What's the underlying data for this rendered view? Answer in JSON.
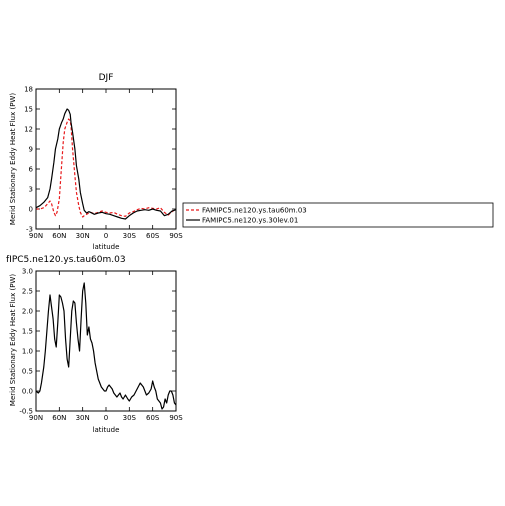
{
  "chart_data": [
    {
      "type": "line",
      "title": "DJF",
      "xlabel": "latitude",
      "ylabel": "Merid Stationary Eddy Heat Flux (PW)",
      "xlim": [
        90,
        -90
      ],
      "ylim": [
        -3,
        18
      ],
      "xticks": [
        90,
        60,
        30,
        0,
        -30,
        -60,
        -90
      ],
      "xtick_labels": [
        "90N",
        "60N",
        "30N",
        "0",
        "30S",
        "60S",
        "90S"
      ],
      "yticks": [
        -3,
        0,
        3,
        6,
        9,
        12,
        15,
        18
      ],
      "ytick_labels": [
        "-3",
        "0",
        "3",
        "6",
        "9",
        "12",
        "15",
        "18"
      ],
      "legend_position": "right",
      "series": [
        {
          "name": "FAMIPC5.ne120.ys.tau60m.03",
          "color": "#e8191b",
          "dash": "dashed",
          "x": [
            90,
            85,
            80,
            78,
            75,
            72,
            70,
            67,
            65,
            63,
            60,
            58,
            55,
            53,
            50,
            48,
            46,
            45,
            43,
            40,
            38,
            35,
            33,
            30,
            28,
            25,
            22,
            20,
            15,
            10,
            5,
            0,
            -5,
            -10,
            -15,
            -20,
            -25,
            -30,
            -35,
            -40,
            -45,
            -50,
            -55,
            -60,
            -65,
            -70,
            -75,
            -80,
            -85,
            -90
          ],
          "y": [
            0,
            0,
            0.2,
            0.4,
            0.8,
            1.2,
            0.8,
            -0.5,
            -1.0,
            -0.5,
            1.5,
            5.0,
            10.0,
            12.0,
            13.0,
            13.5,
            13.2,
            12.5,
            9.0,
            5.0,
            2.5,
            0.5,
            -0.5,
            -1.2,
            -1.0,
            -0.8,
            -0.6,
            -0.5,
            -0.7,
            -0.5,
            -0.3,
            -0.5,
            -0.6,
            -0.5,
            -0.8,
            -1.0,
            -1.1,
            -0.6,
            -0.4,
            -0.1,
            0.1,
            0.0,
            0.2,
            0.1,
            0.0,
            0.2,
            -0.5,
            -0.9,
            -0.4,
            0.0
          ]
        },
        {
          "name": "FAMIPC5.ne120.ys.30lev.01",
          "color": "#000000",
          "dash": "solid",
          "x": [
            90,
            85,
            80,
            75,
            72,
            70,
            67,
            65,
            62,
            60,
            57,
            55,
            53,
            50,
            48,
            46,
            45,
            43,
            40,
            38,
            35,
            33,
            30,
            28,
            25,
            22,
            20,
            15,
            10,
            5,
            0,
            -5,
            -10,
            -15,
            -20,
            -25,
            -30,
            -35,
            -40,
            -45,
            -50,
            -55,
            -60,
            -65,
            -70,
            -75,
            -80,
            -85,
            -90
          ],
          "y": [
            0.2,
            0.5,
            1.0,
            1.7,
            3.0,
            4.5,
            7.0,
            9.0,
            10.5,
            12.0,
            13.0,
            13.5,
            14.3,
            15.0,
            14.8,
            14.2,
            13.0,
            11.5,
            9.0,
            6.5,
            4.5,
            2.5,
            0.8,
            -0.2,
            -0.6,
            -0.4,
            -0.5,
            -0.8,
            -0.6,
            -0.5,
            -0.7,
            -0.8,
            -1.0,
            -1.2,
            -1.4,
            -1.5,
            -1.0,
            -0.6,
            -0.3,
            -0.2,
            -0.1,
            -0.2,
            0.0,
            -0.2,
            -0.3,
            -1.0,
            -0.8,
            -0.3,
            -0.1
          ]
        }
      ]
    },
    {
      "type": "line",
      "title": "fIPC5.ne120.ys.tau60m.03",
      "xlabel": "latitude",
      "ylabel": "Merid Stationary Eddy Heat Flux (PW)",
      "xlim": [
        90,
        -90
      ],
      "ylim": [
        -0.5,
        3.0
      ],
      "xticks": [
        90,
        60,
        30,
        0,
        -30,
        -60,
        -90
      ],
      "xtick_labels": [
        "90N",
        "60N",
        "30N",
        "0",
        "30S",
        "60S",
        "90S"
      ],
      "yticks": [
        -0.5,
        0.0,
        0.5,
        1.0,
        1.5,
        2.0,
        2.5,
        3.0
      ],
      "ytick_labels": [
        "-0.5",
        "0.0",
        "0.5",
        "1.0",
        "1.5",
        "2.0",
        "2.5",
        "3.0"
      ],
      "series": [
        {
          "color": "#000000",
          "dash": "solid",
          "x": [
            90,
            87,
            85,
            83,
            80,
            78,
            76,
            74,
            72,
            70,
            68,
            66,
            64,
            62,
            60,
            58,
            56,
            54,
            52,
            50,
            48,
            46,
            44,
            42,
            40,
            38,
            36,
            34,
            32,
            30,
            28,
            26,
            24,
            22,
            20,
            18,
            16,
            14,
            12,
            10,
            8,
            6,
            4,
            2,
            0,
            -2,
            -4,
            -6,
            -8,
            -10,
            -12,
            -14,
            -16,
            -18,
            -20,
            -22,
            -25,
            -28,
            -30,
            -33,
            -36,
            -40,
            -44,
            -48,
            -52,
            -55,
            -58,
            -60,
            -62,
            -64,
            -66,
            -68,
            -70,
            -72,
            -74,
            -76,
            -78,
            -80,
            -82,
            -84,
            -86,
            -88,
            -90
          ],
          "y": [
            0.0,
            -0.05,
            0.0,
            0.2,
            0.6,
            1.0,
            1.5,
            2.0,
            2.4,
            2.1,
            1.8,
            1.3,
            1.1,
            1.7,
            2.4,
            2.35,
            2.2,
            2.0,
            1.3,
            0.8,
            0.6,
            1.3,
            2.0,
            2.25,
            2.2,
            1.7,
            1.3,
            1.0,
            1.8,
            2.5,
            2.7,
            2.2,
            1.4,
            1.6,
            1.3,
            1.2,
            1.0,
            0.7,
            0.5,
            0.3,
            0.2,
            0.1,
            0.05,
            0.0,
            0.0,
            0.1,
            0.15,
            0.1,
            0.05,
            -0.05,
            -0.1,
            -0.15,
            -0.1,
            -0.05,
            -0.15,
            -0.2,
            -0.1,
            -0.2,
            -0.25,
            -0.15,
            -0.1,
            0.05,
            0.2,
            0.1,
            -0.1,
            -0.05,
            0.05,
            0.25,
            0.1,
            0.0,
            -0.2,
            -0.25,
            -0.3,
            -0.45,
            -0.4,
            -0.2,
            -0.3,
            -0.1,
            0.0,
            0.0,
            -0.1,
            -0.3,
            -0.35
          ]
        }
      ]
    }
  ]
}
